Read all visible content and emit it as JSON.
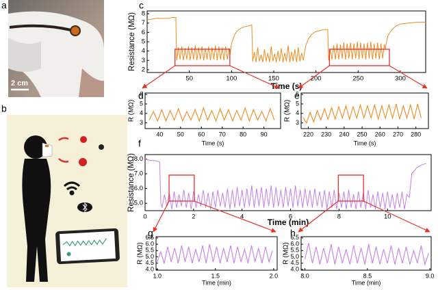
{
  "figure": {
    "a_label": "a",
    "scale_bar": "2 cm",
    "b_label": "b"
  },
  "chart_data": [
    {
      "type": "line",
      "label": "c",
      "ylabel": "Resistance (MΩ)",
      "xlabel": "Time (s)",
      "color": "#f28a1e",
      "xlim": [
        0,
        330
      ],
      "xticks": [
        50,
        100,
        150,
        200,
        250,
        300
      ],
      "ylim": [
        1.7,
        8.3
      ],
      "yticks": [
        2,
        3,
        4,
        5,
        6,
        7,
        8
      ],
      "x": [
        0,
        5,
        10,
        15,
        20,
        25,
        30,
        34,
        35,
        37,
        39,
        41,
        43,
        45,
        47,
        49,
        51,
        53,
        55,
        57,
        59,
        61,
        63,
        65,
        67,
        69,
        71,
        73,
        75,
        77,
        79,
        81,
        83,
        85,
        87,
        89,
        91,
        93,
        95,
        97,
        98,
        100,
        103,
        106,
        110,
        115,
        120,
        124,
        125,
        127,
        129,
        131,
        133,
        135,
        137,
        139,
        141,
        143,
        145,
        147,
        149,
        151,
        153,
        155,
        157,
        159,
        161,
        163,
        165,
        167,
        169,
        171,
        173,
        175,
        177,
        179,
        181,
        183,
        185,
        186,
        188,
        191,
        195,
        200,
        205,
        210,
        214,
        215,
        217,
        219,
        221,
        223,
        225,
        227,
        229,
        231,
        233,
        235,
        237,
        239,
        241,
        243,
        245,
        247,
        249,
        251,
        253,
        255,
        257,
        259,
        261,
        263,
        265,
        267,
        269,
        271,
        273,
        275,
        277,
        279,
        281,
        282,
        285,
        290,
        295,
        300,
        310,
        320,
        330
      ],
      "values": [
        7.4,
        7.4,
        7.5,
        7.5,
        7.5,
        7.5,
        7.6,
        7.6,
        3.0,
        4.4,
        3.1,
        4.5,
        3.0,
        4.3,
        3.1,
        4.5,
        3.0,
        4.4,
        3.1,
        4.6,
        3.0,
        4.4,
        3.1,
        4.5,
        3.0,
        4.3,
        3.1,
        4.5,
        3.0,
        4.4,
        3.1,
        4.6,
        3.0,
        4.5,
        3.1,
        4.4,
        3.0,
        4.5,
        3.1,
        4.3,
        3.5,
        4.8,
        5.6,
        6.1,
        6.4,
        6.6,
        6.7,
        6.8,
        2.9,
        3.9,
        2.8,
        4.4,
        2.9,
        3.6,
        2.8,
        4.2,
        2.9,
        3.8,
        2.8,
        4.5,
        2.9,
        3.7,
        2.8,
        4.0,
        2.9,
        4.3,
        2.8,
        3.8,
        2.9,
        4.6,
        2.8,
        3.9,
        2.9,
        4.2,
        2.8,
        4.4,
        2.9,
        3.8,
        3.0,
        3.6,
        4.6,
        5.3,
        5.8,
        6.1,
        6.2,
        6.3,
        6.3,
        3.0,
        4.2,
        3.1,
        4.6,
        3.1,
        4.8,
        3.1,
        4.7,
        3.2,
        4.9,
        3.1,
        4.8,
        3.2,
        4.9,
        3.1,
        4.8,
        3.2,
        5.0,
        3.1,
        4.9,
        3.2,
        4.8,
        3.1,
        4.9,
        3.2,
        5.0,
        3.1,
        4.8,
        3.2,
        4.9,
        3.1,
        4.8,
        3.2,
        4.7,
        4.2,
        5.6,
        6.3,
        6.7,
        6.9,
        7.0,
        7.1,
        7.1
      ]
    },
    {
      "type": "line",
      "label": "d",
      "ylabel": "R (MΩ)",
      "xlabel": "Time (s)",
      "color": "#f28a1e",
      "xlim": [
        33,
        98
      ],
      "xticks": [
        40,
        50,
        60,
        70,
        80,
        90
      ],
      "ylim": [
        2.4,
        6.15
      ],
      "yticks": [
        3,
        4,
        5,
        6
      ],
      "x": [
        35,
        37,
        39,
        41,
        43,
        45,
        47,
        49,
        51,
        53,
        55,
        57,
        59,
        61,
        63,
        65,
        67,
        69,
        71,
        73,
        75,
        77,
        79,
        81,
        83,
        85,
        87,
        89,
        91,
        93,
        95
      ],
      "values": [
        3.3,
        4.2,
        3.2,
        4.4,
        3.2,
        4.3,
        3.3,
        4.5,
        3.2,
        4.2,
        3.3,
        4.4,
        3.2,
        4.6,
        3.3,
        4.3,
        3.2,
        4.5,
        3.3,
        4.4,
        3.2,
        4.3,
        3.3,
        4.6,
        3.2,
        4.4,
        3.3,
        4.2,
        3.2,
        4.5,
        3.3
      ]
    },
    {
      "type": "line",
      "label": "e",
      "ylabel": "R (MΩ)",
      "xlabel": "Time (s)",
      "color": "#f28a1e",
      "xlim": [
        216,
        287
      ],
      "xticks": [
        220,
        230,
        240,
        250,
        260,
        270,
        280
      ],
      "ylim": [
        2.4,
        6.15
      ],
      "yticks": [
        3,
        4,
        5,
        6
      ],
      "x": [
        217,
        219,
        221,
        223,
        225,
        227,
        229,
        231,
        233,
        235,
        237,
        239,
        241,
        243,
        245,
        247,
        249,
        251,
        253,
        255,
        257,
        259,
        261,
        263,
        265,
        267,
        269,
        271,
        273,
        275,
        277,
        279,
        281,
        283
      ],
      "values": [
        3.6,
        3.0,
        4.1,
        3.1,
        4.3,
        3.3,
        4.5,
        3.4,
        4.6,
        3.4,
        4.7,
        3.5,
        4.8,
        3.4,
        4.7,
        3.5,
        4.9,
        3.5,
        4.8,
        3.5,
        4.9,
        3.4,
        4.8,
        3.5,
        4.9,
        3.5,
        5.0,
        3.4,
        4.8,
        3.5,
        4.9,
        3.4,
        5.0,
        3.5
      ]
    },
    {
      "type": "line",
      "label": "f",
      "ylabel": "Resistance (MΩ)",
      "xlabel": "Time (min)",
      "color": "#c67fe8",
      "xlim": [
        0,
        11.8
      ],
      "xticks": [
        0,
        2,
        4,
        6,
        8,
        10
      ],
      "ylim": [
        4.5,
        8.3
      ],
      "yticks": [
        {
          "value": 5,
          "label": "5.0"
        },
        {
          "value": 6,
          "label": "6.0"
        },
        {
          "value": 7,
          "label": "7.0"
        },
        {
          "value": 8,
          "label": "8.0"
        }
      ],
      "x": [
        0,
        0.2,
        0.4,
        0.6,
        0.65,
        0.7,
        0.8,
        0.9,
        1.0,
        1.1,
        1.2,
        1.3,
        1.4,
        1.5,
        1.6,
        1.7,
        1.8,
        1.9,
        2.0,
        2.1,
        2.2,
        2.3,
        2.4,
        2.5,
        2.6,
        2.7,
        2.8,
        2.9,
        3.0,
        3.1,
        3.2,
        3.3,
        3.4,
        3.5,
        3.6,
        3.7,
        3.8,
        3.9,
        4.0,
        4.1,
        4.2,
        4.3,
        4.4,
        4.5,
        4.6,
        4.7,
        4.8,
        4.9,
        5.0,
        5.1,
        5.2,
        5.3,
        5.4,
        5.5,
        5.6,
        5.7,
        5.8,
        5.9,
        6.0,
        6.1,
        6.2,
        6.3,
        6.4,
        6.5,
        6.6,
        6.7,
        6.8,
        6.9,
        7.0,
        7.1,
        7.2,
        7.3,
        7.4,
        7.5,
        7.6,
        7.7,
        7.8,
        7.9,
        8.0,
        8.1,
        8.2,
        8.3,
        8.4,
        8.5,
        8.6,
        8.7,
        8.8,
        8.9,
        9.0,
        9.1,
        9.2,
        9.3,
        9.4,
        9.5,
        9.6,
        9.7,
        9.8,
        9.9,
        10.0,
        10.1,
        10.2,
        10.3,
        10.4,
        10.5,
        10.6,
        10.7,
        10.8,
        10.9,
        11.0,
        11.2,
        11.4,
        11.6
      ],
      "values": [
        8.0,
        7.9,
        7.9,
        7.8,
        5.0,
        4.7,
        5.6,
        4.8,
        5.7,
        4.6,
        5.8,
        4.7,
        5.6,
        4.8,
        5.9,
        4.7,
        5.7,
        4.6,
        5.8,
        4.7,
        5.6,
        4.8,
        5.9,
        4.7,
        5.7,
        4.6,
        5.8,
        4.7,
        5.9,
        4.8,
        5.7,
        4.7,
        6.0,
        4.6,
        5.9,
        4.7,
        6.1,
        4.8,
        5.9,
        4.7,
        6.0,
        4.8,
        6.2,
        4.7,
        6.0,
        4.8,
        6.1,
        4.7,
        6.0,
        4.8,
        6.2,
        4.7,
        6.1,
        4.8,
        5.9,
        4.7,
        6.1,
        4.8,
        6.0,
        4.7,
        6.2,
        4.8,
        5.9,
        4.7,
        6.0,
        4.8,
        5.9,
        4.7,
        6.0,
        4.8,
        5.8,
        4.7,
        5.9,
        4.6,
        5.8,
        4.7,
        5.9,
        4.6,
        5.7,
        4.7,
        5.8,
        4.6,
        5.9,
        4.7,
        5.6,
        4.6,
        5.8,
        4.7,
        5.7,
        4.6,
        5.9,
        4.7,
        5.6,
        4.6,
        5.8,
        4.7,
        5.7,
        4.6,
        5.8,
        4.7,
        5.6,
        4.6,
        5.7,
        4.7,
        5.8,
        4.6,
        5.6,
        5.4,
        7.0,
        7.4,
        7.6,
        7.7
      ]
    },
    {
      "type": "line",
      "label": "g",
      "ylabel": "R (MΩ)",
      "xlabel": "Time (min)",
      "color": "#c67fe8",
      "xlim": [
        0.99,
        2.03
      ],
      "xticks": [
        {
          "value": 1,
          "label": "1.0"
        },
        1.5,
        {
          "value": 2,
          "label": "2.0"
        }
      ],
      "ylim": [
        3.95,
        6.6
      ],
      "yticks": [
        {
          "value": 4,
          "label": "4.0"
        },
        4.5,
        {
          "value": 5,
          "label": "5.0"
        },
        5.5,
        {
          "value": 6,
          "label": "6.0"
        },
        6.5
      ],
      "x": [
        1,
        1.03,
        1.06,
        1.09,
        1.12,
        1.15,
        1.18,
        1.21,
        1.24,
        1.27,
        1.3,
        1.33,
        1.36,
        1.39,
        1.42,
        1.45,
        1.48,
        1.51,
        1.54,
        1.57,
        1.6,
        1.63,
        1.66,
        1.69,
        1.72,
        1.75,
        1.78,
        1.81,
        1.84,
        1.87,
        1.9,
        1.93,
        1.96,
        1.99
      ],
      "values": [
        4.6,
        5.4,
        4.5,
        5.8,
        4.6,
        5.7,
        4.5,
        5.9,
        4.6,
        5.8,
        4.5,
        5.6,
        4.6,
        5.9,
        4.5,
        6.0,
        4.6,
        5.8,
        4.5,
        5.7,
        4.6,
        5.9,
        4.5,
        5.8,
        4.6,
        5.6,
        4.5,
        5.9,
        4.6,
        5.7,
        4.5,
        5.8,
        4.6,
        5.5
      ]
    },
    {
      "type": "line",
      "label": "h",
      "ylabel": "R (MΩ)",
      "xlabel": "Time (min)",
      "color": "#c67fe8",
      "xlim": [
        7.97,
        9.01
      ],
      "xticks": [
        {
          "value": 8,
          "label": "8.0"
        },
        8.5,
        {
          "value": 9,
          "label": "9.0"
        }
      ],
      "ylim": [
        3.95,
        6.6
      ],
      "yticks": [
        {
          "value": 4,
          "label": "4.0"
        },
        4.5,
        {
          "value": 5,
          "label": "5.0"
        },
        5.5,
        {
          "value": 6,
          "label": "6.0"
        },
        6.5
      ],
      "x": [
        8,
        8.03,
        8.06,
        8.09,
        8.12,
        8.15,
        8.18,
        8.21,
        8.24,
        8.27,
        8.3,
        8.33,
        8.36,
        8.39,
        8.42,
        8.45,
        8.48,
        8.51,
        8.54,
        8.57,
        8.6,
        8.63,
        8.66,
        8.69,
        8.72,
        8.75,
        8.78,
        8.81,
        8.84,
        8.87,
        8.9,
        8.93,
        8.96,
        8.99
      ],
      "values": [
        4.8,
        6.1,
        4.5,
        5.8,
        4.4,
        5.7,
        4.5,
        6.0,
        4.4,
        5.8,
        4.5,
        5.6,
        4.4,
        5.9,
        4.5,
        5.7,
        4.4,
        6.0,
        4.5,
        5.8,
        4.4,
        5.6,
        4.5,
        5.9,
        4.4,
        5.7,
        4.5,
        5.8,
        4.4,
        5.5,
        4.5,
        5.9,
        4.4,
        5.3
      ]
    }
  ]
}
